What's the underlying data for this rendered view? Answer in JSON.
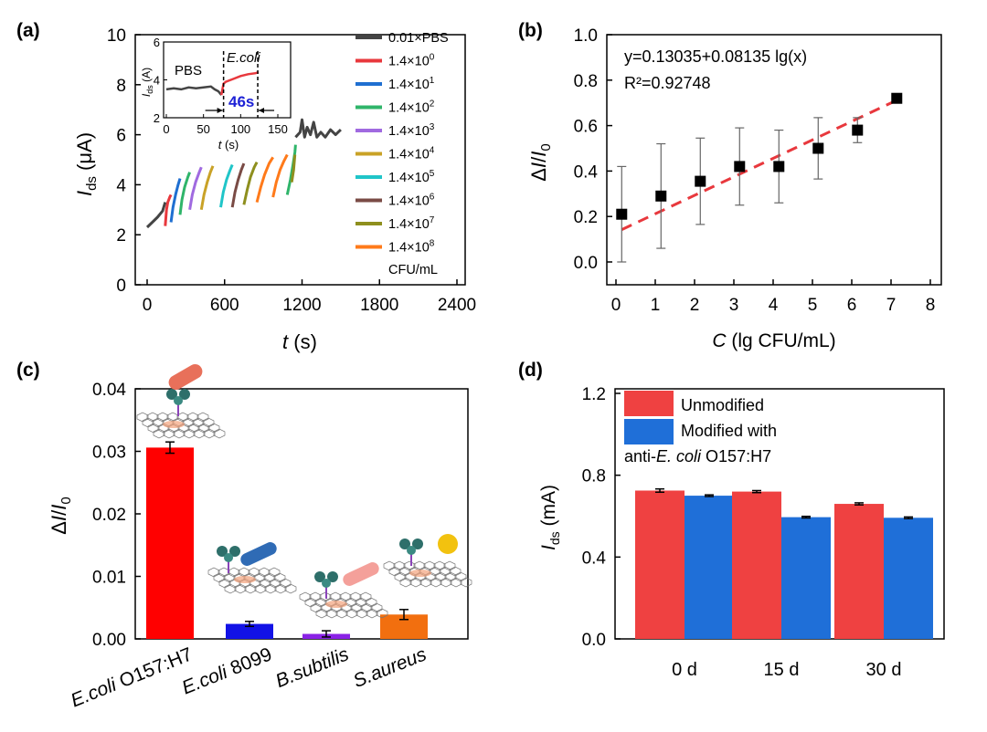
{
  "panels": [
    {
      "id": "a",
      "tag": "(a)",
      "chart_data": {
        "type": "line",
        "xlabel": "t (s)",
        "ylabel": "Ids (μA)",
        "xlim": [
          0,
          2400
        ],
        "ylim": [
          0,
          10
        ],
        "xticks": [
          "0",
          "600",
          "1200",
          "1800",
          "2400"
        ],
        "yticks": [
          "0",
          "2",
          "4",
          "6",
          "8",
          "10"
        ],
        "legend_unit": "CFU/mL",
        "series": [
          {
            "name": "0.01×PBS",
            "color": "#444444",
            "segments": [
              [
                [
                  0,
                  2.3
                ],
                [
                  40,
                  2.5
                ],
                [
                  80,
                  2.7
                ],
                [
                  120,
                  2.95
                ],
                [
                  140,
                  3.3
                ]
              ],
              [
                [
                  1150,
                  5.9
                ],
                [
                  1185,
                  6.1
                ],
                [
                  1200,
                  6.6
                ],
                [
                  1220,
                  5.9
                ],
                [
                  1240,
                  6.3
                ],
                [
                  1265,
                  6.0
                ],
                [
                  1290,
                  6.5
                ],
                [
                  1315,
                  5.9
                ],
                [
                  1345,
                  6.1
                ],
                [
                  1380,
                  5.9
                ],
                [
                  1420,
                  6.2
                ],
                [
                  1460,
                  6.0
                ],
                [
                  1500,
                  6.2
                ]
              ]
            ]
          },
          {
            "name": "1.4×10^0",
            "color": "#e8383d",
            "segments": [
              [
                [
                  140,
                  2.35
                ],
                [
                  150,
                  3.0
                ],
                [
                  160,
                  3.3
                ],
                [
                  175,
                  3.5
                ],
                [
                  185,
                  3.6
                ]
              ]
            ]
          },
          {
            "name": "1.4×10^1",
            "color": "#1f6fd1",
            "segments": [
              [
                [
                  185,
                  2.5
                ],
                [
                  200,
                  3.1
                ],
                [
                  220,
                  3.6
                ],
                [
                  240,
                  4.0
                ],
                [
                  255,
                  4.25
                ]
              ]
            ]
          },
          {
            "name": "1.4×10^2",
            "color": "#2fb56a",
            "segments": [
              [
                [
                  255,
                  2.8
                ],
                [
                  270,
                  3.4
                ],
                [
                  290,
                  3.9
                ],
                [
                  315,
                  4.3
                ],
                [
                  330,
                  4.5
                ]
              ]
            ]
          },
          {
            "name": "1.4×10^3",
            "color": "#a06ae0",
            "segments": [
              [
                [
                  330,
                  3.0
                ],
                [
                  350,
                  3.6
                ],
                [
                  375,
                  4.1
                ],
                [
                  400,
                  4.45
                ],
                [
                  420,
                  4.7
                ]
              ]
            ]
          },
          {
            "name": "1.4×10^4",
            "color": "#c9a227",
            "segments": [
              [
                [
                  420,
                  3.0
                ],
                [
                  440,
                  3.6
                ],
                [
                  465,
                  4.1
                ],
                [
                  490,
                  4.5
                ],
                [
                  510,
                  4.75
                ]
              ]
            ]
          },
          {
            "name": "1.4×10^5",
            "color": "#20c5c8",
            "segments": [
              [
                [
                  570,
                  3.1
                ],
                [
                  590,
                  3.7
                ],
                [
                  615,
                  4.2
                ],
                [
                  640,
                  4.55
                ],
                [
                  660,
                  4.8
                ]
              ]
            ]
          },
          {
            "name": "1.4×10^6",
            "color": "#7a4b45",
            "segments": [
              [
                [
                  660,
                  3.1
                ],
                [
                  680,
                  3.7
                ],
                [
                  705,
                  4.2
                ],
                [
                  730,
                  4.6
                ],
                [
                  750,
                  4.85
                ]
              ]
            ]
          },
          {
            "name": "1.4×10^7",
            "color": "#8e8f1e",
            "segments": [
              [
                [
                  750,
                  3.2
                ],
                [
                  775,
                  3.8
                ],
                [
                  800,
                  4.3
                ],
                [
                  830,
                  4.7
                ],
                [
                  850,
                  4.9
                ]
              ]
            ]
          },
          {
            "name": "1.4×10^8",
            "color": "#ff7a1a",
            "segments": [
              [
                [
                  850,
                  3.3
                ],
                [
                  880,
                  3.9
                ],
                [
                  910,
                  4.4
                ],
                [
                  945,
                  4.85
                ],
                [
                  975,
                  5.1
                ]
              ],
              [
                [
                  975,
                  3.5
                ],
                [
                  1000,
                  4.1
                ],
                [
                  1030,
                  4.6
                ],
                [
                  1060,
                  4.95
                ],
                [
                  1085,
                  5.2
                ]
              ]
            ]
          }
        ],
        "extra_segments": [
          {
            "color": "#2fb56a",
            "points": [
              [
                1085,
                3.6
              ],
              [
                1110,
                4.2
              ],
              [
                1130,
                4.8
              ],
              [
                1145,
                5.3
              ],
              [
                1150,
                5.6
              ]
            ]
          },
          {
            "color": "#8e8f1e",
            "points": [
              [
                1120,
                4.1
              ],
              [
                1135,
                4.6
              ],
              [
                1145,
                5.2
              ]
            ]
          }
        ],
        "inset": {
          "xlim": [
            0,
            150
          ],
          "ylim": [
            2,
            6
          ],
          "xticks": [
            "0",
            "50",
            "100",
            "150"
          ],
          "yticks": [
            "2",
            "4",
            "6"
          ],
          "xlabel": "t (s)",
          "ylabel": "Ids (A)",
          "label_left": "PBS",
          "label_right": "E.coli",
          "annotation": "46s",
          "pbs": [
            [
              0,
              3.5
            ],
            [
              10,
              3.55
            ],
            [
              20,
              3.5
            ],
            [
              30,
              3.6
            ],
            [
              40,
              3.55
            ],
            [
              50,
              3.6
            ],
            [
              60,
              3.65
            ],
            [
              65,
              3.5
            ],
            [
              70,
              3.4
            ],
            [
              74,
              3.2
            ]
          ],
          "ecoli": [
            [
              74,
              3.2
            ],
            [
              77,
              3.8
            ],
            [
              80,
              3.9
            ],
            [
              90,
              4.05
            ],
            [
              100,
              4.2
            ],
            [
              110,
              4.3
            ],
            [
              120,
              4.35
            ],
            [
              124,
              4.4
            ]
          ],
          "markers": [
            77,
            123
          ]
        }
      }
    },
    {
      "id": "b",
      "tag": "(b)",
      "chart_data": {
        "type": "scatter",
        "xlabel": "C (lg CFU/mL)",
        "ylabel": "ΔI/I0",
        "xlim": [
          0,
          8
        ],
        "ylim": [
          0,
          1.0
        ],
        "xticks": [
          "0",
          "1",
          "2",
          "3",
          "4",
          "5",
          "6",
          "7",
          "8"
        ],
        "yticks": [
          "0.0",
          "0.2",
          "0.4",
          "0.6",
          "0.8",
          "1.0"
        ],
        "x": [
          0.146,
          1.146,
          2.146,
          3.146,
          4.146,
          5.146,
          6.146,
          7.146
        ],
        "y": [
          0.21,
          0.29,
          0.355,
          0.42,
          0.42,
          0.5,
          0.58,
          0.72
        ],
        "err": [
          0.21,
          0.23,
          0.19,
          0.17,
          0.16,
          0.135,
          0.055,
          0.01
        ],
        "fit": {
          "intercept": 0.13035,
          "slope": 0.08135,
          "equation": "y=0.13035+0.08135 lg(x)",
          "r2": "R²=0.92748",
          "color": "#e8383d"
        }
      }
    },
    {
      "id": "c",
      "tag": "(c)",
      "chart_data": {
        "type": "bar",
        "ylabel": "ΔI/I0",
        "ylim": [
          0,
          0.04
        ],
        "yticks": [
          "0.00",
          "0.01",
          "0.02",
          "0.03",
          "0.04"
        ],
        "categories": [
          "E.coli O157:H7",
          "E.coli 8099",
          "B.subtilis",
          "S.aureus"
        ],
        "values": [
          0.0306,
          0.0024,
          0.0008,
          0.0039
        ],
        "errors": [
          0.0009,
          0.0004,
          0.0005,
          0.0008
        ],
        "colors": [
          "#ff0000",
          "#1212e6",
          "#8a22e6",
          "#f26f0f"
        ]
      }
    },
    {
      "id": "d",
      "tag": "(d)",
      "chart_data": {
        "type": "bar",
        "ylabel": "Ids (mA)",
        "ylim": [
          0,
          1.2
        ],
        "yticks": [
          "0.0",
          "0.4",
          "0.8",
          "1.2"
        ],
        "categories": [
          "0 d",
          "15 d",
          "30 d"
        ],
        "series": [
          {
            "name": "Unmodified",
            "values": [
              0.725,
              0.72,
              0.66
            ],
            "errors": [
              0.008,
              0.005,
              0.005
            ],
            "color": "#ef4141"
          },
          {
            "name": "Modified with anti-E. coli O157:H7",
            "values": [
              0.7,
              0.595,
              0.592
            ],
            "errors": [
              0.004,
              0.004,
              0.004
            ],
            "color": "#1f6fd8"
          }
        ],
        "legend": [
          "Unmodified",
          "Modified with",
          "anti-E. coli O157:H7"
        ]
      }
    }
  ]
}
